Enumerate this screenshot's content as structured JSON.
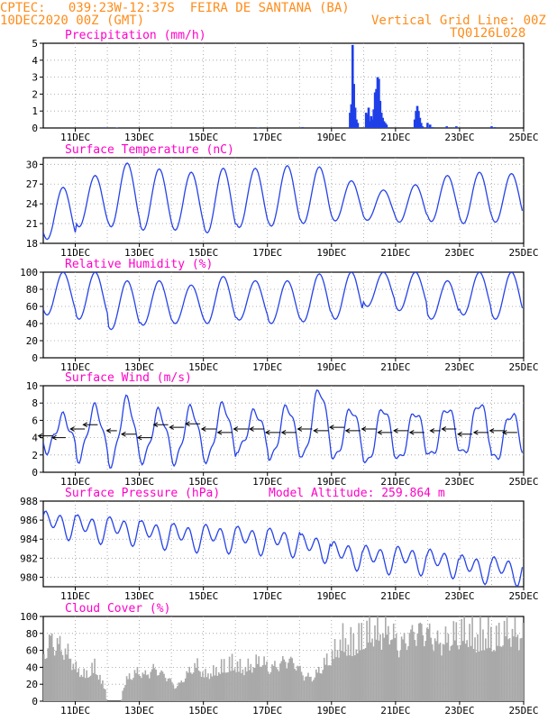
{
  "header": {
    "line1": "CPTEC:   039:23W-12:37S  FEIRA DE SANTANA (BA)",
    "line2_left": "10DEC2020 00Z (GMT)",
    "line2_right": "Vertical Grid Line: 00Z",
    "line3_right": "TQ0126L028"
  },
  "colors": {
    "header": "#ff8c1a",
    "title": "#ff00c8",
    "line": "#2643e8",
    "bar": "#1f3fe8",
    "cloud": "#a9a9a9",
    "grid": "#9a9a9a"
  },
  "x_axis": {
    "start_day": 10,
    "end_day": 25,
    "ticks": [
      "11DEC",
      "13DEC",
      "15DEC",
      "17DEC",
      "19DEC",
      "21DEC",
      "23DEC",
      "25DEC"
    ]
  },
  "chart_data": [
    {
      "id": "precip",
      "type": "bar",
      "title": "Precipitation (mm/h)",
      "ylim": [
        0,
        5
      ],
      "yticks": [
        0,
        1,
        2,
        3,
        4,
        5
      ],
      "unit": "mm/h",
      "grid": "dotted",
      "bars": [
        [
          11.9,
          0.04
        ],
        [
          12.3,
          0.03
        ],
        [
          16.7,
          0.03
        ],
        [
          18.1,
          0.05
        ],
        [
          19.58,
          0.9
        ],
        [
          19.62,
          1.4
        ],
        [
          19.66,
          4.9
        ],
        [
          19.7,
          2.6
        ],
        [
          19.74,
          1.2
        ],
        [
          19.78,
          0.5
        ],
        [
          19.82,
          0.3
        ],
        [
          20.08,
          0.9
        ],
        [
          20.12,
          0.6
        ],
        [
          20.16,
          1.2
        ],
        [
          20.2,
          0.4
        ],
        [
          20.32,
          1.1
        ],
        [
          20.36,
          2.1
        ],
        [
          20.4,
          2.3
        ],
        [
          20.44,
          3.0
        ],
        [
          20.48,
          2.9
        ],
        [
          20.52,
          1.6
        ],
        [
          20.56,
          0.9
        ],
        [
          20.6,
          0.6
        ],
        [
          20.64,
          0.4
        ],
        [
          20.68,
          0.3
        ],
        [
          20.1,
          0.8
        ],
        [
          20.24,
          0.7
        ],
        [
          20.28,
          0.5
        ],
        [
          20.72,
          0.2
        ],
        [
          21.6,
          0.5
        ],
        [
          21.64,
          1.0
        ],
        [
          21.68,
          1.3
        ],
        [
          21.72,
          1.0
        ],
        [
          21.76,
          0.6
        ],
        [
          21.8,
          0.3
        ],
        [
          21.84,
          0.1
        ],
        [
          22.0,
          0.3
        ],
        [
          22.08,
          0.2
        ],
        [
          22.16,
          0.05
        ],
        [
          22.6,
          0.1
        ],
        [
          22.9,
          0.1
        ],
        [
          24.0,
          0.1
        ],
        [
          24.1,
          0.05
        ]
      ]
    },
    {
      "id": "temp",
      "type": "line",
      "title": "Surface Temperature (nC)",
      "ylim": [
        18,
        31
      ],
      "yticks": [
        18,
        21,
        24,
        27,
        30
      ],
      "unit": "nC",
      "grid": "dotted",
      "daily": {
        "min": [
          18.6,
          20.5,
          20.5,
          20.0,
          20.0,
          19.6,
          20.4,
          20.6,
          21.0,
          21.4,
          21.5,
          21.2,
          21.3,
          21.0,
          21.2
        ],
        "max": [
          26.5,
          28.3,
          30.2,
          29.3,
          28.8,
          29.4,
          29.4,
          29.8,
          29.6,
          27.5,
          26.1,
          26.9,
          28.3,
          28.8,
          28.6
        ]
      }
    },
    {
      "id": "rh",
      "type": "line",
      "title": "Relative Humidity (%)",
      "ylim": [
        0,
        100
      ],
      "yticks": [
        0,
        20,
        40,
        60,
        80,
        100
      ],
      "unit": "%",
      "grid": "dotted",
      "daily": {
        "min": [
          50,
          45,
          33,
          38,
          40,
          40,
          44,
          40,
          42,
          45,
          60,
          55,
          45,
          50,
          45
        ],
        "max": [
          100,
          100,
          90,
          90,
          85,
          95,
          90,
          90,
          98,
          100,
          100,
          100,
          90,
          100,
          100
        ]
      }
    },
    {
      "id": "wind",
      "type": "line",
      "title": "Surface Wind (m/s)",
      "ylim": [
        0,
        10
      ],
      "yticks": [
        0,
        2,
        4,
        6,
        8,
        10
      ],
      "unit": "m/s",
      "grid": "dotted",
      "daily": {
        "min": [
          2.6,
          1.6,
          1.0,
          1.4,
          1.2,
          1.4,
          2.6,
          1.6,
          1.8,
          1.6,
          1.0,
          1.4,
          1.8,
          2.0,
          1.4
        ],
        "max": [
          6.4,
          7.5,
          8.4,
          7.0,
          7.4,
          7.8,
          7.0,
          7.6,
          9.5,
          7.3,
          7.4,
          7.0,
          7.5,
          8.0,
          6.8
        ]
      },
      "vectors": [
        {
          "day": 10.3,
          "speed": 4.2,
          "dir": "W"
        },
        {
          "day": 10.7,
          "speed": 4.0,
          "dir": "WNW"
        },
        {
          "day": 11.3,
          "speed": 5.0,
          "dir": "W"
        },
        {
          "day": 11.7,
          "speed": 5.5,
          "dir": "W"
        },
        {
          "day": 12.3,
          "speed": 4.8,
          "dir": "NW"
        },
        {
          "day": 12.9,
          "speed": 4.4,
          "dir": "W"
        },
        {
          "day": 13.4,
          "speed": 4.0,
          "dir": "W"
        },
        {
          "day": 13.9,
          "speed": 5.5,
          "dir": "W"
        },
        {
          "day": 14.4,
          "speed": 5.2,
          "dir": "W"
        },
        {
          "day": 14.9,
          "speed": 5.6,
          "dir": "W"
        },
        {
          "day": 15.4,
          "speed": 5.0,
          "dir": "W"
        },
        {
          "day": 15.9,
          "speed": 4.6,
          "dir": "W"
        },
        {
          "day": 16.4,
          "speed": 5.0,
          "dir": "W"
        },
        {
          "day": 16.9,
          "speed": 5.0,
          "dir": "W"
        },
        {
          "day": 17.4,
          "speed": 4.6,
          "dir": "W"
        },
        {
          "day": 17.9,
          "speed": 4.6,
          "dir": "W"
        },
        {
          "day": 18.4,
          "speed": 5.0,
          "dir": "W"
        },
        {
          "day": 18.9,
          "speed": 4.8,
          "dir": "W"
        },
        {
          "day": 19.4,
          "speed": 5.2,
          "dir": "W"
        },
        {
          "day": 19.9,
          "speed": 4.8,
          "dir": "W"
        },
        {
          "day": 20.4,
          "speed": 5.0,
          "dir": "W"
        },
        {
          "day": 20.9,
          "speed": 4.6,
          "dir": "W"
        },
        {
          "day": 21.4,
          "speed": 4.8,
          "dir": "W"
        },
        {
          "day": 21.9,
          "speed": 4.6,
          "dir": "W"
        },
        {
          "day": 22.4,
          "speed": 4.8,
          "dir": "NW"
        },
        {
          "day": 22.9,
          "speed": 5.0,
          "dir": "W"
        },
        {
          "day": 23.4,
          "speed": 4.4,
          "dir": "W"
        },
        {
          "day": 23.9,
          "speed": 4.6,
          "dir": "W"
        },
        {
          "day": 24.4,
          "speed": 4.8,
          "dir": "W"
        },
        {
          "day": 24.8,
          "speed": 4.6,
          "dir": "W"
        }
      ]
    },
    {
      "id": "press",
      "type": "line",
      "title": "Surface Pressure (hPa)",
      "subtitle": "Model Altitude: 259.864 m",
      "ylim": [
        979,
        988
      ],
      "yticks": [
        980,
        982,
        984,
        986,
        988
      ],
      "unit": "hPa",
      "grid": "dotted",
      "daily_mean": [
        985.6,
        985.2,
        985.0,
        984.6,
        984.3,
        984.2,
        984.0,
        983.8,
        983.2,
        982.4,
        982.0,
        981.9,
        981.6,
        981.0,
        980.8
      ],
      "daily_amplitude": 1.8
    },
    {
      "id": "cloud",
      "type": "area",
      "title": "Cloud Cover (%)",
      "ylim": [
        0,
        100
      ],
      "yticks": [
        0,
        20,
        40,
        60,
        80,
        100
      ],
      "unit": "%",
      "grid": "dotted",
      "envelope": [
        [
          10.0,
          60
        ],
        [
          10.2,
          85
        ],
        [
          10.5,
          75
        ],
        [
          10.8,
          60
        ],
        [
          11.0,
          40
        ],
        [
          11.3,
          30
        ],
        [
          11.6,
          45
        ],
        [
          11.8,
          20
        ],
        [
          12.0,
          0
        ],
        [
          12.4,
          0
        ],
        [
          12.6,
          25
        ],
        [
          12.9,
          35
        ],
        [
          13.2,
          30
        ],
        [
          13.4,
          40
        ],
        [
          13.6,
          35
        ],
        [
          13.9,
          25
        ],
        [
          14.1,
          10
        ],
        [
          14.3,
          20
        ],
        [
          14.6,
          40
        ],
        [
          14.8,
          45
        ],
        [
          15.0,
          30
        ],
        [
          15.3,
          35
        ],
        [
          15.6,
          45
        ],
        [
          15.9,
          50
        ],
        [
          16.2,
          40
        ],
        [
          16.5,
          45
        ],
        [
          16.8,
          55
        ],
        [
          17.0,
          40
        ],
        [
          17.3,
          45
        ],
        [
          17.6,
          55
        ],
        [
          17.9,
          45
        ],
        [
          18.1,
          30
        ],
        [
          18.4,
          25
        ],
        [
          18.7,
          45
        ],
        [
          19.0,
          60
        ],
        [
          19.3,
          85
        ],
        [
          19.6,
          80
        ],
        [
          19.9,
          90
        ],
        [
          20.2,
          100
        ],
        [
          20.5,
          95
        ],
        [
          20.8,
          100
        ],
        [
          21.1,
          75
        ],
        [
          21.4,
          90
        ],
        [
          21.7,
          100
        ],
        [
          22.0,
          95
        ],
        [
          22.3,
          80
        ],
        [
          22.6,
          85
        ],
        [
          22.9,
          95
        ],
        [
          23.2,
          100
        ],
        [
          23.5,
          90
        ],
        [
          23.8,
          95
        ],
        [
          24.1,
          85
        ],
        [
          24.4,
          100
        ],
        [
          24.7,
          95
        ],
        [
          25.0,
          90
        ]
      ]
    }
  ]
}
